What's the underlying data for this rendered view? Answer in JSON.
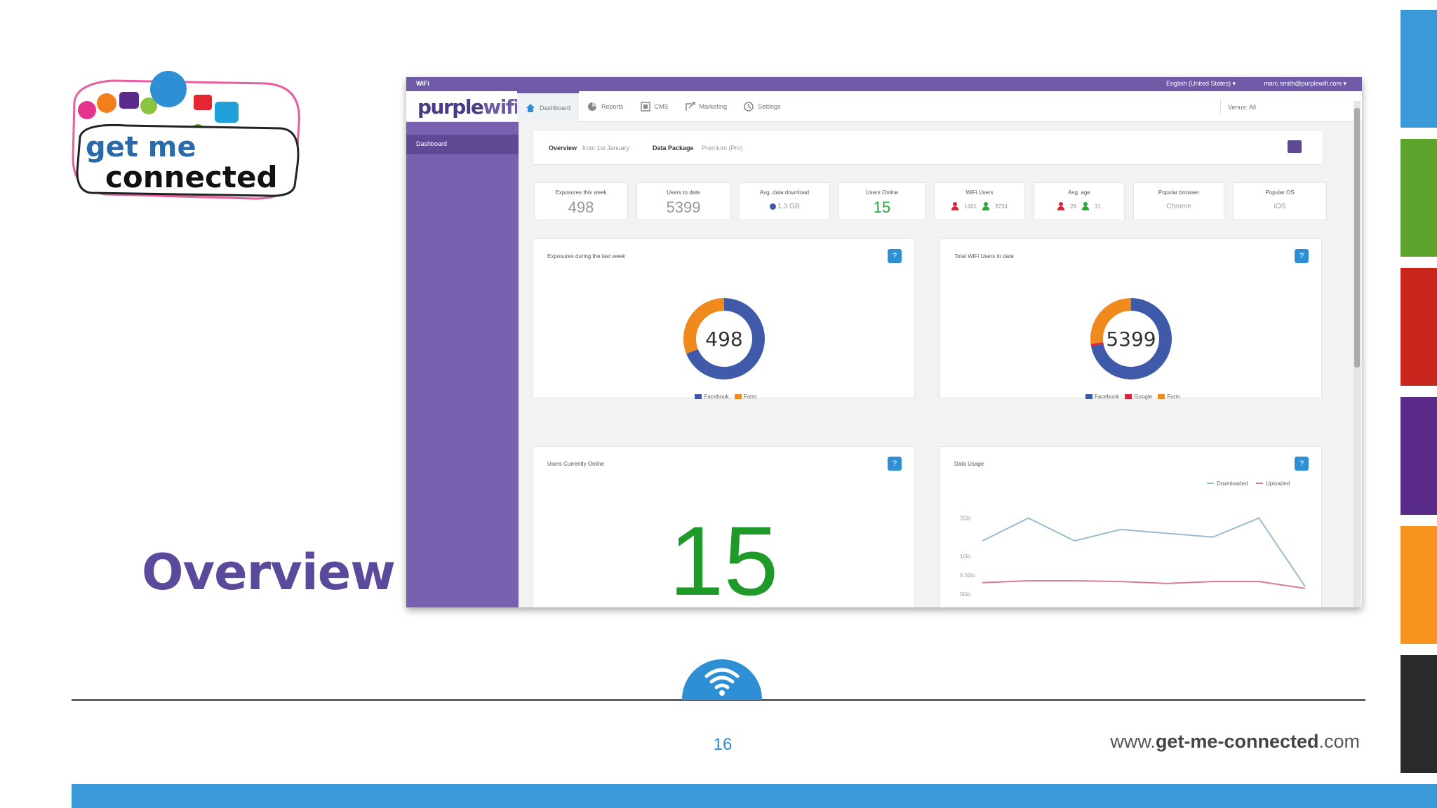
{
  "slide": {
    "title": "Overview",
    "page_number": "16",
    "url": {
      "prefix": "www.",
      "domain": "get-me-connected",
      "suffix": ".com"
    },
    "logo": {
      "line1": "get me",
      "line2": "connected"
    },
    "side_colors": [
      "#3a9ad9",
      "#5ba32a",
      "#c8261d",
      "#5a2a8a",
      "#f7941d",
      "#2a2a2a"
    ],
    "accent_color": "#5b4a9c",
    "band_color": "#3a9ad9"
  },
  "screenshot": {
    "topbar": {
      "brand_tag": "WiFi",
      "language": "English (United States) ▾",
      "user_email": "marc.smith@purplewifi.com ▾"
    },
    "logo": {
      "purple": "purple",
      "wifi": "wifi"
    },
    "nav_tabs": [
      {
        "label": "Dashboard",
        "icon": "home-icon",
        "active": true
      },
      {
        "label": "Reports",
        "icon": "pie-chart-icon",
        "active": false
      },
      {
        "label": "CMS",
        "icon": "cms-icon",
        "active": false
      },
      {
        "label": "Marketing",
        "icon": "marketing-icon",
        "active": false
      },
      {
        "label": "Settings",
        "icon": "settings-icon",
        "active": false
      }
    ],
    "venue_select": "Venue: All",
    "sidebar": {
      "items": [
        {
          "label": "Dashboard"
        }
      ]
    },
    "breadcrumb": {
      "overview_label": "Overview",
      "overview_value": "from 1st January",
      "package_label": "Data Package",
      "package_value": "Premium (Pro)"
    },
    "stats": [
      {
        "title": "Exposures this week",
        "value": "498"
      },
      {
        "title": "Users to date",
        "value": "5399"
      },
      {
        "title": "Avg. data download",
        "value": "1.3 GB"
      },
      {
        "title": "Users Online",
        "value": "15"
      },
      {
        "title": "WiFi Users",
        "female": "1461",
        "male": "3734"
      },
      {
        "title": "Avg. age",
        "female": "28",
        "male": "31"
      },
      {
        "title": "Popular browser",
        "value": "Chrome"
      },
      {
        "title": "Popular OS",
        "value": "iOS"
      }
    ],
    "cards": {
      "exposures": {
        "title": "Exposures during the last week",
        "total": "498",
        "legend": [
          {
            "name": "Facebook",
            "color": "#3f5aa8"
          },
          {
            "name": "Form",
            "color": "#f08a1c"
          }
        ]
      },
      "total_users": {
        "title": "Total WiFi Users to date",
        "total": "5399",
        "legend": [
          {
            "name": "Facebook",
            "color": "#3f5aa8"
          },
          {
            "name": "Google",
            "color": "#d9263a"
          },
          {
            "name": "Form",
            "color": "#f08a1c"
          }
        ]
      },
      "online": {
        "title": "Users Currently Online",
        "value": "15"
      },
      "usage": {
        "title": "Data Usage",
        "y_ticks": [
          "2Gb",
          "1Gb",
          "0.5Gb",
          "0Gb"
        ],
        "legend": [
          {
            "name": "Downloaded",
            "color": "#9bbccf"
          },
          {
            "name": "Uploaded",
            "color": "#d97c9a"
          }
        ]
      }
    }
  },
  "chart_data": [
    {
      "type": "pie",
      "title": "Exposures during the last week",
      "categories": [
        "Facebook",
        "Form"
      ],
      "values": [
        69,
        31
      ],
      "center_label": "498"
    },
    {
      "type": "pie",
      "title": "Total WiFi Users to date",
      "categories": [
        "Facebook",
        "Google",
        "Form"
      ],
      "values": [
        72,
        1,
        27
      ],
      "center_label": "5399"
    },
    {
      "type": "line",
      "title": "Data Usage",
      "x": [
        1,
        2,
        3,
        4,
        5,
        6,
        7,
        8
      ],
      "series": [
        {
          "name": "Downloaded",
          "values": [
            1.4,
            2.0,
            1.4,
            1.7,
            1.6,
            1.5,
            2.0,
            0.2
          ]
        },
        {
          "name": "Uploaded",
          "values": [
            0.3,
            0.35,
            0.35,
            0.33,
            0.28,
            0.33,
            0.33,
            0.15
          ]
        }
      ],
      "ylim": [
        0,
        2.4
      ]
    }
  ]
}
